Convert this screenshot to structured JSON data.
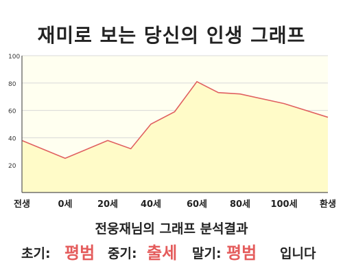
{
  "title": "재미로 보는 당신의 인생 그래프",
  "chart_data": {
    "type": "area",
    "x_categories": [
      "전생",
      "0세",
      "20세",
      "40세",
      "60세",
      "80세",
      "100세",
      "환생"
    ],
    "points": [
      {
        "x": "전생",
        "y": 38
      },
      {
        "x": "0세",
        "y": 25
      },
      {
        "x": "20세",
        "y": 38
      },
      {
        "x": 30,
        "y": 32
      },
      {
        "x": "40세",
        "y": 50
      },
      {
        "x": 50,
        "y": 59
      },
      {
        "x": "60세",
        "y": 81
      },
      {
        "x": 70,
        "y": 73
      },
      {
        "x": "80세",
        "y": 72
      },
      {
        "x": "100세",
        "y": 65
      },
      {
        "x": "환생",
        "y": 55
      }
    ],
    "y_ticks": [
      "20",
      "40",
      "60",
      "80",
      "100"
    ],
    "ylim": [
      0,
      100
    ],
    "grid": true,
    "colors": {
      "line": "#e06060",
      "fill": "#fffbc8",
      "plot_bg": "#fffff0",
      "grid": "#d8d8d8"
    }
  },
  "result": {
    "title": "전웅재님의 그래프 분석결과",
    "early_label": "초기:",
    "early_value": "평범",
    "middle_label": "중기:",
    "middle_value": "출세",
    "late_label": "말기:",
    "late_value": "평범",
    "suffix": "입니다",
    "value_color": "#e45b5b"
  }
}
